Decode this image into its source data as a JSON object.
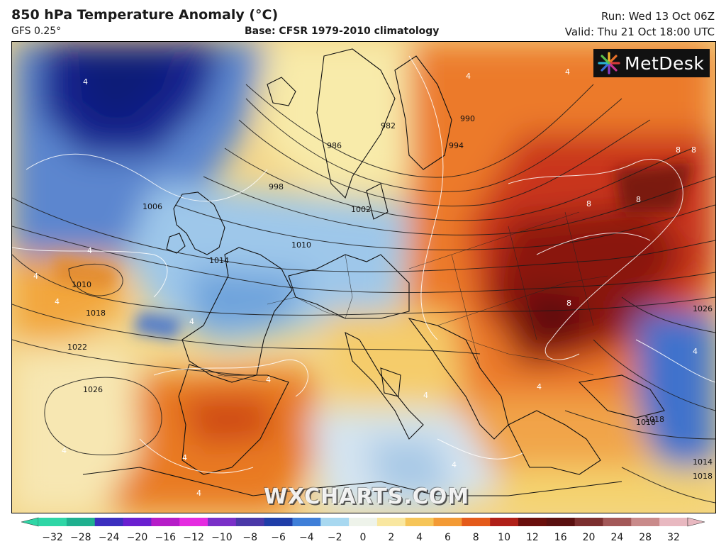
{
  "header": {
    "title": "850 hPa Temperature Anomaly (°C)",
    "model": "GFS 0.25°",
    "base": "Base: CFSR 1979-2010 climatology",
    "run": "Run: Wed 13 Oct 06Z",
    "valid": "Valid: Thu 21 Oct 18:00 UTC"
  },
  "logo": {
    "text": "MetDesk",
    "icon": "metdesk-starburst-icon"
  },
  "watermark": "WXCHARTS.COM",
  "isobar_labels": [
    "1002",
    "998",
    "986",
    "982",
    "990",
    "994",
    "1006",
    "1010",
    "1014",
    "1010",
    "1018",
    "1022",
    "1026",
    "1026",
    "1018",
    "1018",
    "1014",
    "1018"
  ],
  "anomaly_labels": [
    "4",
    "4",
    "4",
    "4",
    "4",
    "4",
    "8",
    "8",
    "8",
    "8",
    "8",
    "4",
    "4",
    "4",
    "4",
    "4",
    "4",
    "4",
    "4",
    "4"
  ],
  "colorbar": {
    "ticks": [
      "−32",
      "−28",
      "−24",
      "−20",
      "−16",
      "−12",
      "−10",
      "−8",
      "−6",
      "−4",
      "−2",
      "0",
      "2",
      "4",
      "6",
      "8",
      "10",
      "12",
      "16",
      "20",
      "24",
      "28",
      "32"
    ],
    "colors": [
      "#2fd6a6",
      "#1fb08f",
      "#3b2fbf",
      "#6a1fd0",
      "#b61cc8",
      "#e52be0",
      "#7a30c8",
      "#4a38a8",
      "#1f3ea8",
      "#3f7fd8",
      "#a8d8f0",
      "#eef3ea",
      "#f9e7a0",
      "#f6c558",
      "#f39a35",
      "#e45a1a",
      "#b02018",
      "#6a0f0c",
      "#5a1010",
      "#7c2f2f",
      "#a35858",
      "#c98a8a",
      "#e8b8c0"
    ]
  }
}
